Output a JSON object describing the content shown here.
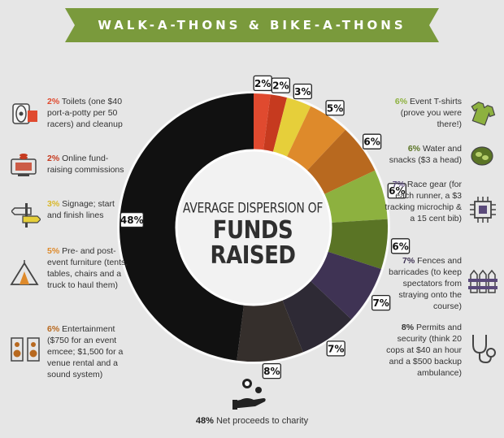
{
  "title": "WALK-A-THONS & BIKE-A-THONS",
  "colors": {
    "banner": "#7a9a3c",
    "background": "#e6e6e6"
  },
  "chart_data": {
    "type": "pie",
    "title_line1": "AVERAGE DISPERSION OF",
    "title_line2": "FUNDS RAISED",
    "slices": [
      {
        "value": 2,
        "label": "2%",
        "color": "#e04a2f"
      },
      {
        "value": 2,
        "label": "2%",
        "color": "#c63a1f"
      },
      {
        "value": 3,
        "label": "3%",
        "color": "#e6cf3a"
      },
      {
        "value": 5,
        "label": "5%",
        "color": "#de8a2b"
      },
      {
        "value": 6,
        "label": "6%",
        "color": "#b8691f"
      },
      {
        "value": 6,
        "label": "6%",
        "color": "#8db13f"
      },
      {
        "value": 6,
        "label": "6%",
        "color": "#5a7425"
      },
      {
        "value": 7,
        "label": "7%",
        "color": "#3f3354"
      },
      {
        "value": 7,
        "label": "7%",
        "color": "#2e2a35"
      },
      {
        "value": 8,
        "label": "8%",
        "color": "#352f2c"
      },
      {
        "value": 48,
        "label": "48%",
        "color": "#111111"
      }
    ]
  },
  "legend_left": [
    {
      "pct": "2%",
      "text": " Toilets (one $40 port-a-potty per 50 racers) and cleanup",
      "color": "#e04a2f",
      "icon": "toilet-paper-icon"
    },
    {
      "pct": "2%",
      "text": " Online fund-raising commissions",
      "color": "#c63a1f",
      "icon": "computer-coins-icon"
    },
    {
      "pct": "3%",
      "text": " Signage; start and finish lines",
      "color": "#d9b82a",
      "icon": "signpost-icon"
    },
    {
      "pct": "5%",
      "text": " Pre- and post-event furniture (tents, tables, chairs and a truck to haul them)",
      "color": "#de8a2b",
      "icon": "tent-icon"
    },
    {
      "pct": "6%",
      "text": " Entertainment ($750 for an event emcee; $1,500 for a venue rental and a sound system)",
      "color": "#b8691f",
      "icon": "speakers-icon"
    }
  ],
  "legend_right": [
    {
      "pct": "6%",
      "text": " Event T-shirts (prove you were there!)",
      "color": "#8db13f",
      "icon": "tshirt-icon"
    },
    {
      "pct": "6%",
      "text": " Water and snacks ($3 a head)",
      "color": "#5a7425",
      "icon": "snacks-icon"
    },
    {
      "pct": "7%",
      "text": " Race gear (for each runner, a $3 tracking microchip & a 15 cent bib)",
      "color": "#5a4a7a",
      "icon": "microchip-icon"
    },
    {
      "pct": "7%",
      "text": " Fences and barricades (to keep spectators from straying onto the course)",
      "color": "#3f3354",
      "icon": "fence-icon"
    },
    {
      "pct": "8%",
      "text": " Permits and security (think 20 cops at $40 an hour and a $500 backup ambulance)",
      "color": "#333333",
      "icon": "stethoscope-icon"
    }
  ],
  "footer": {
    "pct": "48%",
    "text": " Net proceeds to charity",
    "icon": "hand-coins-icon"
  }
}
